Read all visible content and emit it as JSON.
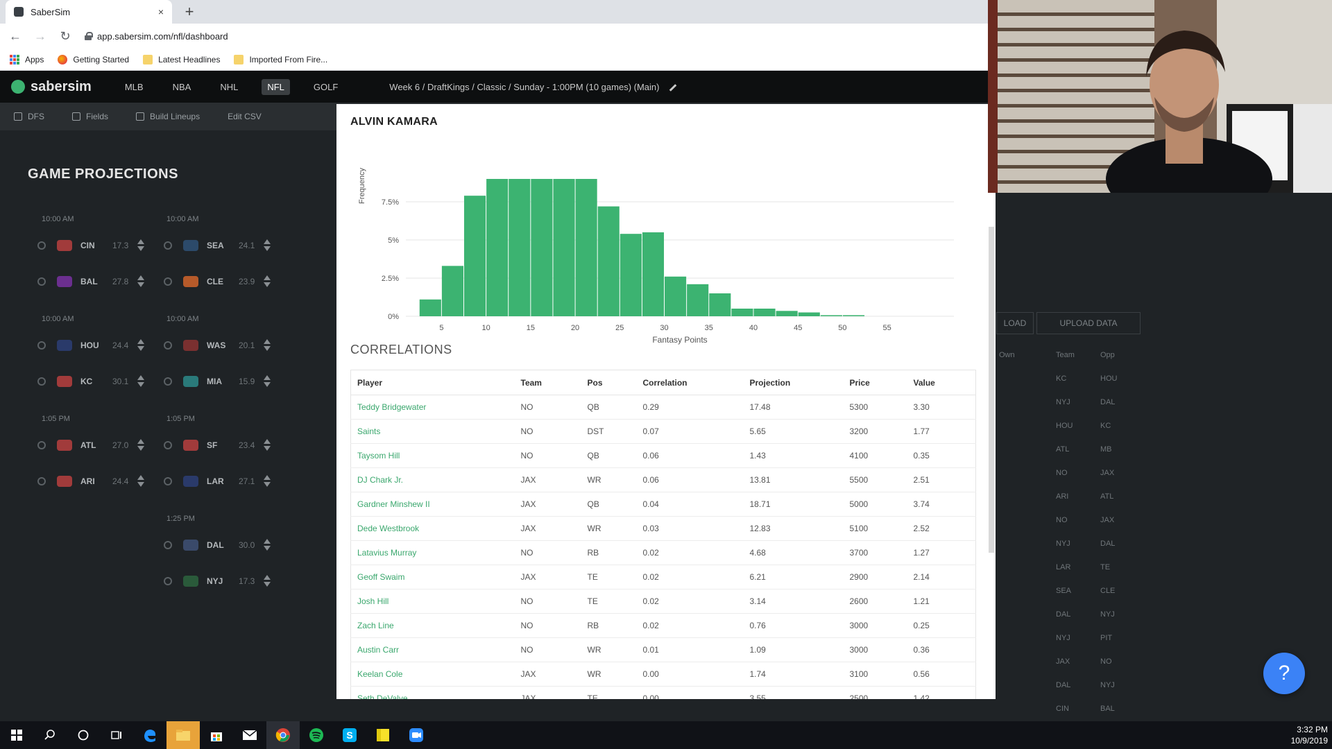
{
  "browser": {
    "tab_title": "SaberSim",
    "tab_close": "×",
    "new_tab": "+",
    "url": "app.sabersim.com/nfl/dashboard",
    "bookmarks": [
      "Apps",
      "Getting Started",
      "Latest Headlines",
      "Imported From Fire..."
    ]
  },
  "app": {
    "logo": "sabersim",
    "sports": [
      "MLB",
      "NBA",
      "NHL",
      "NFL",
      "GOLF"
    ],
    "active_sport": "NFL",
    "slate": "Week 6 / DraftKings / Classic / Sunday - 1:00PM (10 games) (Main)",
    "toolbar": [
      "DFS",
      "Fields",
      "Build Lineups",
      "Edit CSV"
    ],
    "section_title": "GAME PROJECTIONS",
    "games": [
      {
        "time": "10:00 AM",
        "rows": [
          {
            "abbr": "CIN",
            "num": "17.3"
          },
          {
            "abbr": "BAL",
            "num": "27.8"
          }
        ]
      },
      {
        "time": "10:00 AM",
        "rows": [
          {
            "abbr": "SEA",
            "num": "24.1"
          },
          {
            "abbr": "CLE",
            "num": "23.9"
          }
        ]
      },
      {
        "time": "10:00 AM",
        "rows": [
          {
            "abbr": "HOU",
            "num": "24.4"
          },
          {
            "abbr": "KC",
            "num": "30.1"
          }
        ]
      },
      {
        "time": "10:00 AM",
        "rows": [
          {
            "abbr": "WAS",
            "num": "20.1"
          },
          {
            "abbr": "MIA",
            "num": "15.9"
          }
        ]
      },
      {
        "time": "1:05 PM",
        "rows": [
          {
            "abbr": "ATL",
            "num": "27.0"
          },
          {
            "abbr": "ARI",
            "num": "24.4"
          }
        ]
      },
      {
        "time": "1:05 PM",
        "rows": [
          {
            "abbr": "SF",
            "num": "23.4"
          },
          {
            "abbr": "LAR",
            "num": "27.1"
          }
        ]
      },
      {
        "time": "1:25 PM",
        "rows": [
          {
            "abbr": "DAL",
            "num": "30.0"
          },
          {
            "abbr": "NYJ",
            "num": "17.3"
          }
        ]
      }
    ],
    "right_panel": {
      "buttons": [
        "LOAD",
        "UPLOAD DATA"
      ],
      "headers": [
        "Own",
        "Team",
        "Opp"
      ],
      "teams": [
        "KC",
        "NYJ",
        "HOU",
        "ATL",
        "NO",
        "ARI",
        "NO",
        "NYJ",
        "LAR",
        "SEA",
        "DAL",
        "NYJ",
        "JAX",
        "DAL",
        "CIN"
      ],
      "opps": [
        "HOU",
        "DAL",
        "KC",
        "MB",
        "JAX",
        "ATL",
        "JAX",
        "DAL",
        "TE",
        "CLE",
        "NYJ",
        "PIT",
        "NO",
        "NYJ",
        "BAL"
      ]
    },
    "help_label": "?"
  },
  "modal": {
    "player_name": "ALVIN KAMARA",
    "correlations_title": "CORRELATIONS",
    "table": {
      "headers": [
        "Player",
        "Team",
        "Pos",
        "Correlation",
        "Projection",
        "Price",
        "Value"
      ],
      "rows": [
        [
          "Teddy Bridgewater",
          "NO",
          "QB",
          "0.29",
          "17.48",
          "5300",
          "3.30"
        ],
        [
          "Saints",
          "NO",
          "DST",
          "0.07",
          "5.65",
          "3200",
          "1.77"
        ],
        [
          "Taysom Hill",
          "NO",
          "QB",
          "0.06",
          "1.43",
          "4100",
          "0.35"
        ],
        [
          "DJ Chark Jr.",
          "JAX",
          "WR",
          "0.06",
          "13.81",
          "5500",
          "2.51"
        ],
        [
          "Gardner Minshew II",
          "JAX",
          "QB",
          "0.04",
          "18.71",
          "5000",
          "3.74"
        ],
        [
          "Dede Westbrook",
          "JAX",
          "WR",
          "0.03",
          "12.83",
          "5100",
          "2.52"
        ],
        [
          "Latavius Murray",
          "NO",
          "RB",
          "0.02",
          "4.68",
          "3700",
          "1.27"
        ],
        [
          "Geoff Swaim",
          "JAX",
          "TE",
          "0.02",
          "6.21",
          "2900",
          "2.14"
        ],
        [
          "Josh Hill",
          "NO",
          "TE",
          "0.02",
          "3.14",
          "2600",
          "1.21"
        ],
        [
          "Zach Line",
          "NO",
          "RB",
          "0.02",
          "0.76",
          "3000",
          "0.25"
        ],
        [
          "Austin Carr",
          "NO",
          "WR",
          "0.01",
          "1.09",
          "3000",
          "0.36"
        ],
        [
          "Keelan Cole",
          "JAX",
          "WR",
          "0.00",
          "1.74",
          "3100",
          "0.56"
        ],
        [
          "Seth DeValve",
          "JAX",
          "TE",
          "0.00",
          "3.55",
          "2500",
          "1.42"
        ]
      ]
    }
  },
  "chart_data": {
    "type": "bar",
    "title": "",
    "xlabel": "Fantasy Points",
    "ylabel": "Frequency",
    "bin_width": 2.5,
    "bin_start": 2.5,
    "values": [
      1.1,
      3.3,
      7.9,
      9.0,
      9.0,
      9.0,
      9.0,
      9.0,
      7.2,
      5.4,
      5.5,
      2.6,
      2.1,
      1.5,
      0.5,
      0.5,
      0.35,
      0.25,
      0.07,
      0.07
    ],
    "xlim": [
      1,
      62.5
    ],
    "ylim": [
      0,
      9
    ],
    "x_ticks": [
      5,
      10,
      15,
      20,
      25,
      30,
      35,
      40,
      45,
      50,
      55
    ],
    "y_ticks": [
      0,
      2.5,
      5,
      7.5
    ],
    "y_tick_labels": [
      "0%",
      "2.5%",
      "5%",
      "7.5%"
    ],
    "color": "#3cb371",
    "grid": true
  },
  "taskbar": {
    "time": "3:32 PM",
    "date": "10/9/2019"
  }
}
